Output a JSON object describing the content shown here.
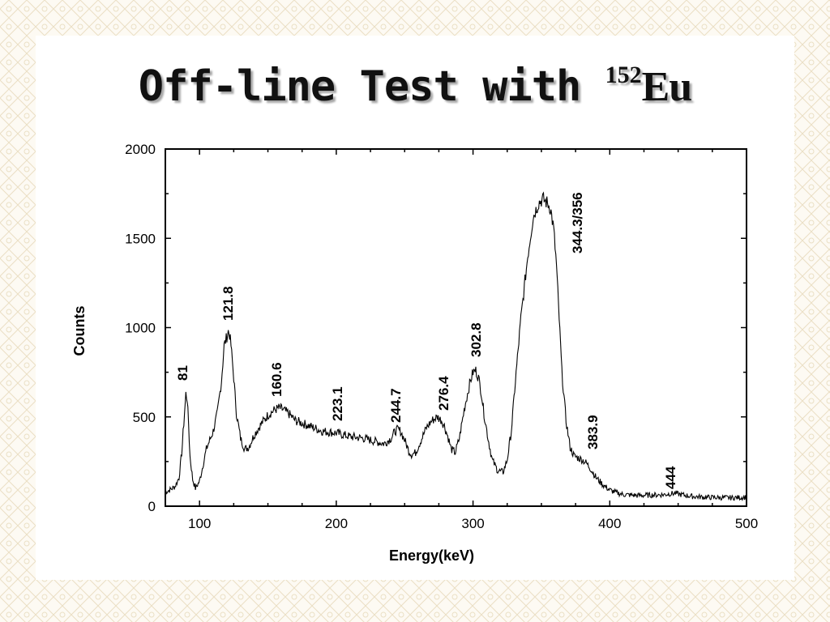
{
  "slide": {
    "title_main": "Off-line Test with ",
    "title_sup": "152",
    "title_element": "Eu"
  },
  "colors": {
    "background_pattern": "#efe6cf",
    "line": "#000000"
  },
  "chart_data": {
    "type": "line",
    "title": "",
    "xlabel": "Energy(keV)",
    "ylabel": "Counts",
    "xlim": [
      75,
      500
    ],
    "ylim": [
      0,
      2000
    ],
    "xticks": [
      100,
      200,
      300,
      400,
      500
    ],
    "yticks": [
      0,
      500,
      1000,
      1500,
      2000
    ],
    "grid": false,
    "legend": "none",
    "series": [
      {
        "x": [
          75,
          78,
          82,
          85,
          87,
          89,
          90,
          91,
          92,
          93,
          95,
          97,
          100,
          105,
          110,
          113,
          116,
          118,
          120,
          121,
          122,
          123,
          125,
          127,
          130,
          133,
          136,
          140,
          145,
          150,
          155,
          158,
          160,
          165,
          170,
          180,
          190,
          200,
          210,
          220,
          225,
          230,
          235,
          240,
          243,
          245,
          247,
          250,
          253,
          255,
          258,
          262,
          266,
          270,
          274,
          277,
          279,
          282,
          284,
          287,
          290,
          294,
          298,
          300,
          302,
          304,
          306,
          308,
          311,
          314,
          318,
          322,
          325,
          328,
          331,
          335,
          340,
          344,
          348,
          351,
          354,
          356,
          357,
          359,
          361,
          363,
          365,
          368,
          371,
          374,
          377,
          380,
          383,
          386,
          390,
          395,
          400,
          405,
          410,
          420,
          430,
          440,
          444,
          448,
          452,
          460,
          470,
          480,
          490,
          500
        ],
        "values": [
          80,
          90,
          110,
          160,
          300,
          520,
          630,
          600,
          460,
          280,
          150,
          100,
          140,
          320,
          420,
          520,
          700,
          900,
          950,
          980,
          960,
          900,
          720,
          520,
          380,
          320,
          330,
          400,
          460,
          510,
          540,
          550,
          545,
          520,
          480,
          450,
          420,
          410,
          390,
          380,
          370,
          360,
          350,
          380,
          420,
          430,
          420,
          370,
          310,
          290,
          300,
          370,
          440,
          480,
          500,
          480,
          450,
          380,
          320,
          300,
          380,
          560,
          700,
          750,
          760,
          720,
          640,
          520,
          380,
          260,
          200,
          190,
          260,
          420,
          700,
          1050,
          1400,
          1620,
          1700,
          1720,
          1700,
          1680,
          1650,
          1550,
          1350,
          1050,
          750,
          480,
          330,
          280,
          270,
          260,
          240,
          210,
          160,
          120,
          90,
          75,
          65,
          60,
          62,
          65,
          70,
          72,
          65,
          55,
          50,
          48,
          47,
          50
        ]
      }
    ],
    "annotations": [
      "81",
      "121.8",
      "160.6",
      "223.1",
      "244.7",
      "276.4",
      "302.8",
      "344.3/356",
      "383.9",
      "444"
    ]
  }
}
